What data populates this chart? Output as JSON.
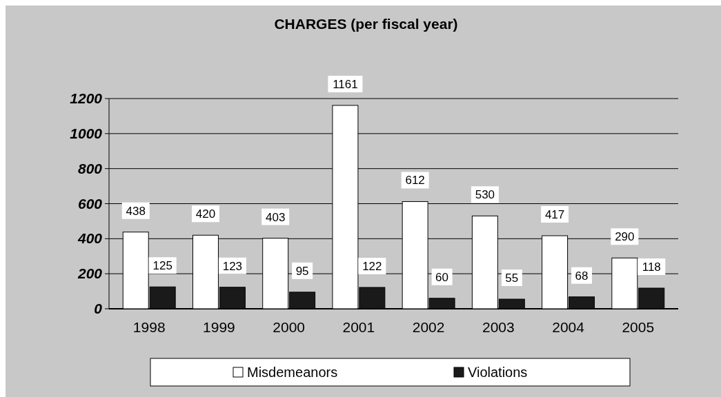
{
  "chart_data": {
    "type": "bar",
    "title": "CHARGES (per fiscal year)",
    "categories": [
      "1998",
      "1999",
      "2000",
      "2001",
      "2002",
      "2003",
      "2004",
      "2005"
    ],
    "series": [
      {
        "name": "Misdemeanors",
        "color": "#ffffff",
        "values": [
          438,
          420,
          403,
          1161,
          612,
          530,
          417,
          290
        ]
      },
      {
        "name": "Violations",
        "color": "#1a1a1a",
        "values": [
          125,
          123,
          95,
          122,
          60,
          55,
          68,
          118
        ]
      }
    ],
    "ylim": [
      0,
      1200
    ],
    "yticks": [
      0,
      200,
      400,
      600,
      800,
      1000,
      1200
    ],
    "grid": "y",
    "legend": "bottom",
    "data_labels": true
  }
}
